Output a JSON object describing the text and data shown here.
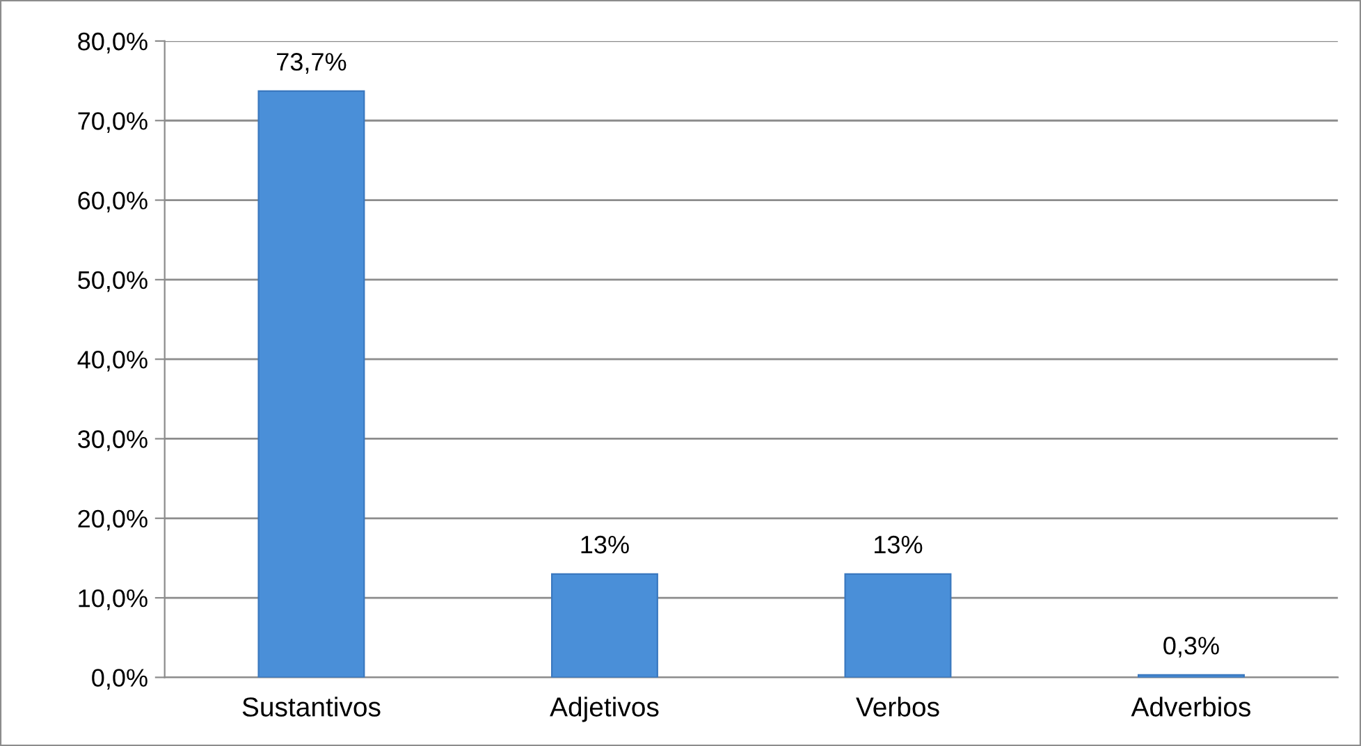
{
  "chart_data": {
    "type": "bar",
    "categories": [
      "Sustantivos",
      "Adjetivos",
      "Verbos",
      "Adverbios"
    ],
    "values": [
      73.7,
      13,
      13,
      0.3
    ],
    "value_labels": [
      "73,7%",
      "13%",
      "13%",
      "0,3%"
    ],
    "color": "#4a8fd8",
    "ylim": [
      0,
      80
    ],
    "yticks": [
      {
        "value": 0,
        "label": "0,0%"
      },
      {
        "value": 10,
        "label": "10,0%"
      },
      {
        "value": 20,
        "label": "20,0%"
      },
      {
        "value": 30,
        "label": "30,0%"
      },
      {
        "value": 40,
        "label": "40,0%"
      },
      {
        "value": 50,
        "label": "50,0%"
      },
      {
        "value": 60,
        "label": "60,0%"
      },
      {
        "value": 70,
        "label": "70,0%"
      },
      {
        "value": 80,
        "label": "80,0%"
      }
    ],
    "grid": "y"
  }
}
